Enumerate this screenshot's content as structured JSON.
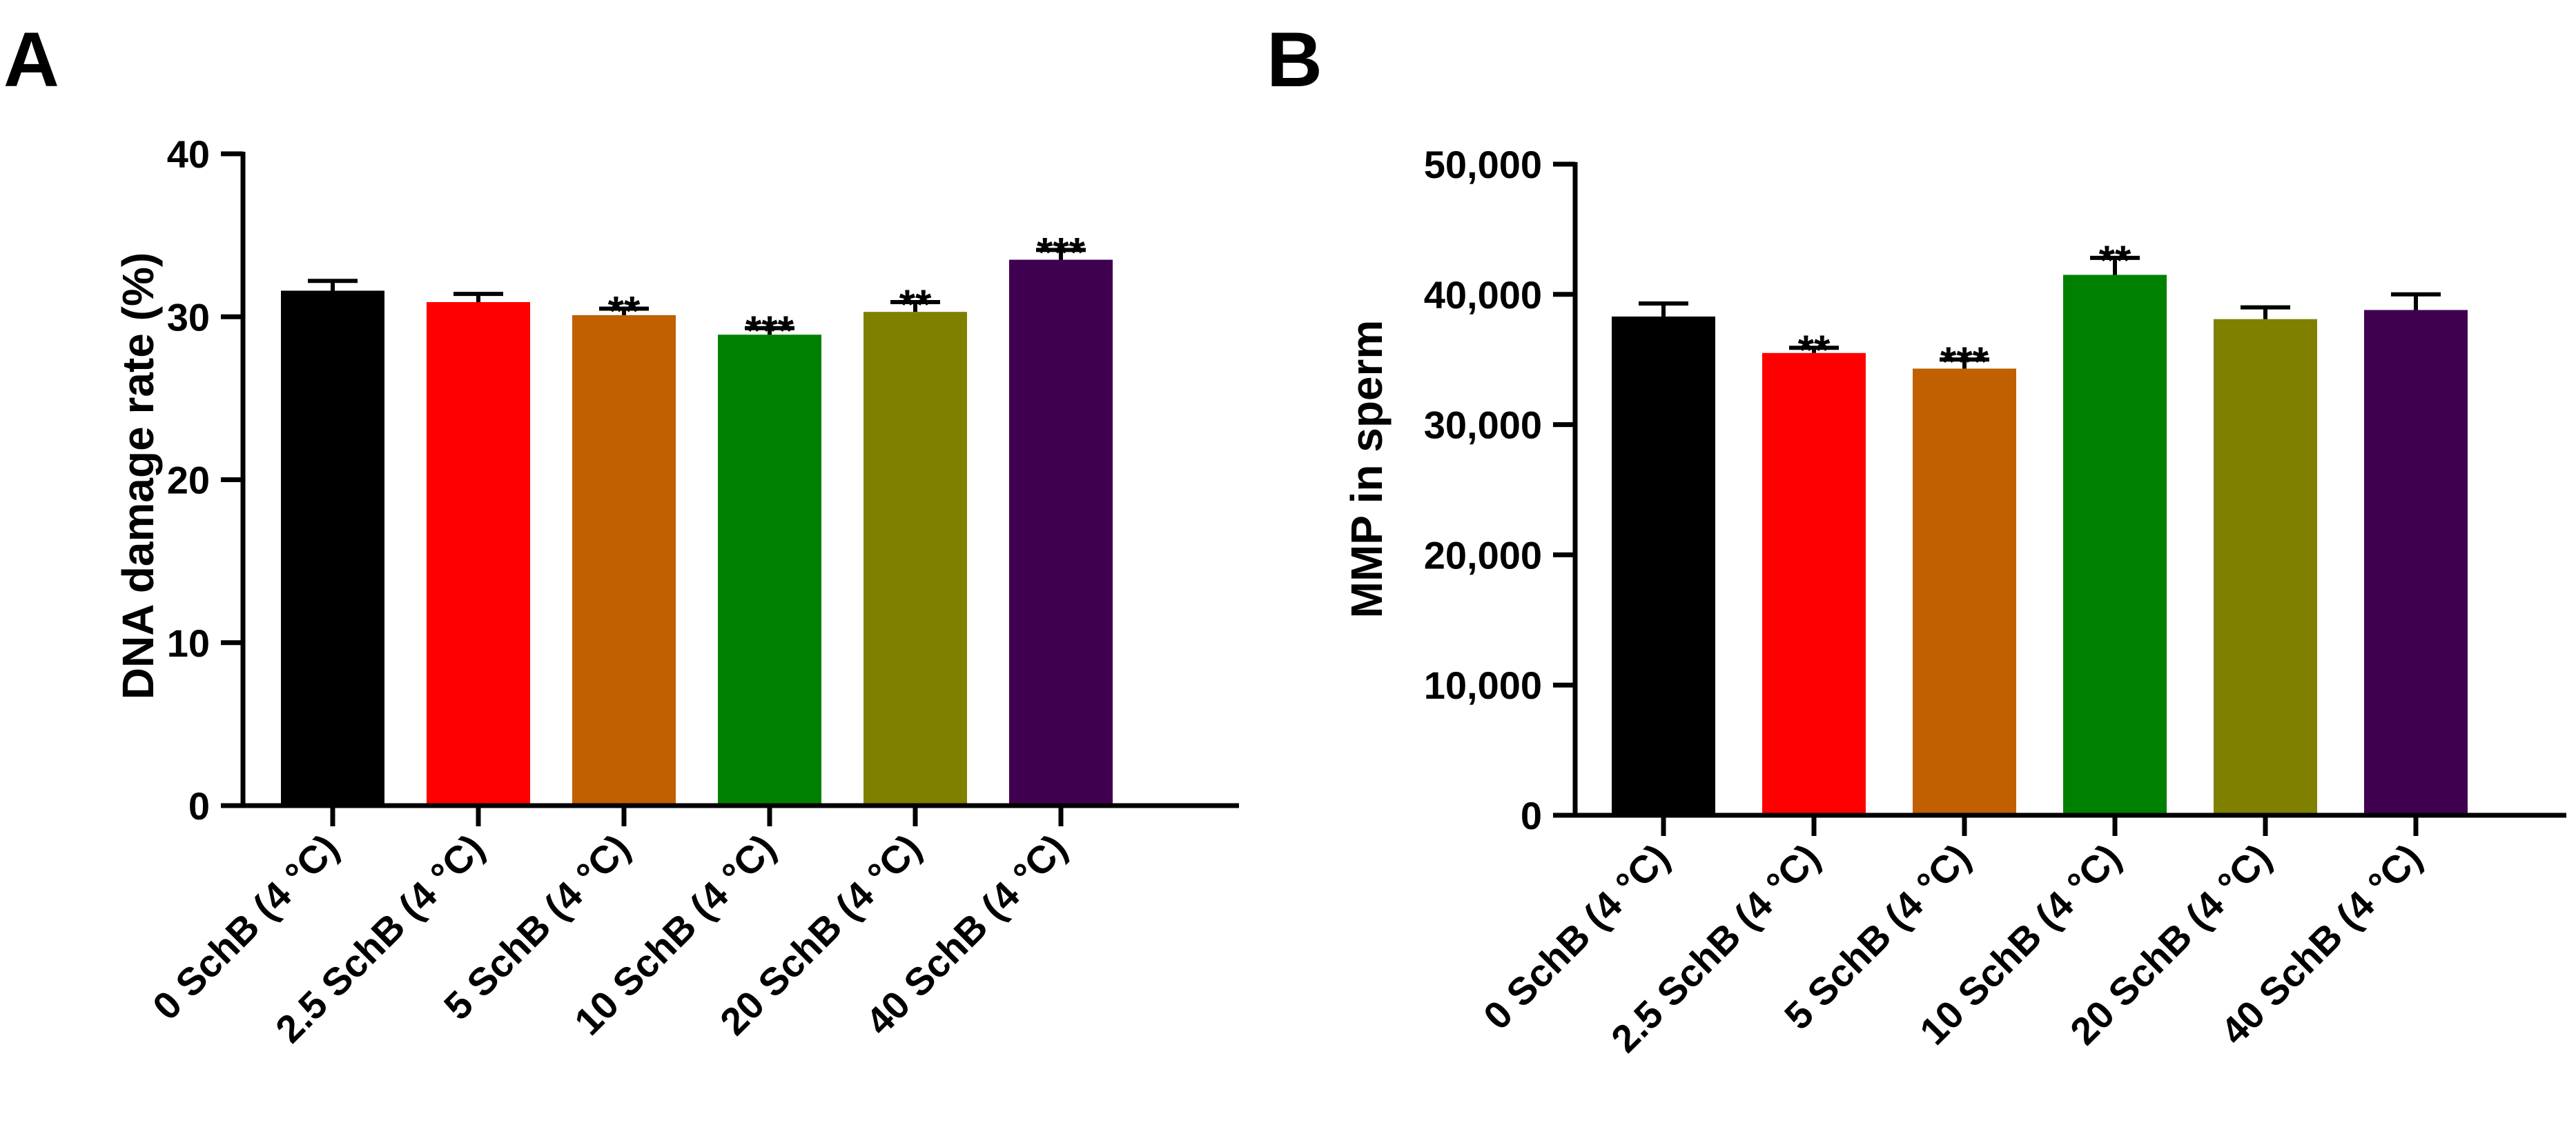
{
  "chart_data": [
    {
      "panel_label": "A",
      "type": "bar",
      "title": "",
      "xlabel": "",
      "ylabel": "DNA damage rate (%)",
      "ylim": [
        0,
        40
      ],
      "yticks": [
        0,
        10,
        20,
        30,
        40
      ],
      "ytick_labels": [
        "0",
        "10",
        "20",
        "30",
        "40"
      ],
      "categories": [
        "0 SchB (4 °C)",
        "2.5 SchB (4 °C)",
        "5 SchB (4 °C)",
        "10 SchB (4 °C)",
        "20 SchB (4 °C)",
        "40 SchB (4 °C)"
      ],
      "values": [
        31.6,
        30.9,
        30.1,
        28.9,
        30.3,
        33.5
      ],
      "errors": [
        0.6,
        0.5,
        0.4,
        0.4,
        0.6,
        0.6
      ],
      "significance": [
        "",
        "",
        "**",
        "***",
        "**",
        "***"
      ],
      "colors": [
        "#000000",
        "#ff0000",
        "#c06000",
        "#008000",
        "#808000",
        "#400050"
      ],
      "grid": false,
      "legend": "none"
    },
    {
      "panel_label": "B",
      "type": "bar",
      "title": "",
      "xlabel": "",
      "ylabel": "MMP in sperm",
      "ylim": [
        0,
        50000
      ],
      "yticks": [
        0,
        10000,
        20000,
        30000,
        40000,
        50000
      ],
      "ytick_labels": [
        "0",
        "10,000",
        "20,000",
        "30,000",
        "40,000",
        "50,000"
      ],
      "categories": [
        "0 SchB (4 °C)",
        "2.5 SchB (4 °C)",
        "5 SchB (4 °C)",
        "10 SchB (4 °C)",
        "20 SchB (4 °C)",
        "40 SchB (4 °C)"
      ],
      "values": [
        38300,
        35500,
        34300,
        41500,
        38100,
        38800
      ],
      "errors": [
        1000,
        400,
        700,
        1300,
        900,
        1200
      ],
      "significance": [
        "",
        "**",
        "***",
        "**",
        "",
        ""
      ],
      "colors": [
        "#000000",
        "#ff0000",
        "#c06000",
        "#008000",
        "#808000",
        "#400050"
      ],
      "grid": false,
      "legend": "none"
    }
  ]
}
